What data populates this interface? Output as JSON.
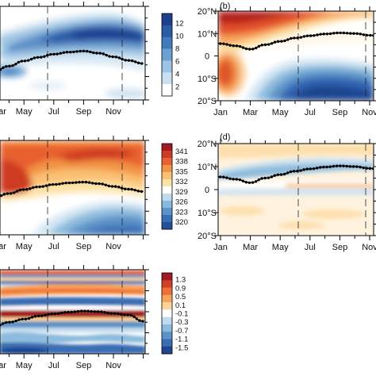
{
  "chart_data": [
    {
      "id": "a",
      "type": "heatmap",
      "panel_label": "",
      "x_ticks": [
        "Mar",
        "May",
        "Jul",
        "Sep",
        "Nov"
      ],
      "y_ticks": [],
      "colorbar": {
        "ticks": [
          "12",
          "10",
          "8",
          "6",
          "4",
          "2"
        ],
        "colors": [
          "#1d3f8f",
          "#2b5aa6",
          "#3f7bbd",
          "#6aa1d1",
          "#9cc4e2",
          "#c9e0f0",
          "#ffffff"
        ]
      },
      "dashed_month_lines": [
        "Jun",
        "Nov"
      ],
      "monthly_line": [
        {
          "month": "Jan",
          "lat": 9.0
        },
        {
          "month": "Feb",
          "lat": 8.0
        },
        {
          "month": "Mar",
          "lat": 7.5
        },
        {
          "month": "Apr",
          "lat": 8.5
        },
        {
          "month": "May",
          "lat": 9.5
        },
        {
          "month": "Jun",
          "lat": 10.2
        },
        {
          "month": "Jul",
          "lat": 10.8
        },
        {
          "month": "Aug",
          "lat": 11.2
        },
        {
          "month": "Sep",
          "lat": 11.4
        },
        {
          "month": "Oct",
          "lat": 11.0
        },
        {
          "month": "Nov",
          "lat": 10.3
        },
        {
          "month": "Dec",
          "lat": 9.6
        }
      ]
    },
    {
      "id": "b",
      "type": "heatmap",
      "panel_label": "(b)",
      "x_ticks": [
        "Jan",
        "Mar",
        "May",
        "Jul",
        "Sep",
        "Nov"
      ],
      "y_ticks": [
        "20°N",
        "10°N",
        "0",
        "10°S",
        "20°S"
      ],
      "ylim": [
        -20,
        20
      ],
      "dashed_month_lines": [
        "Jun",
        "Nov"
      ],
      "monthly_line": [
        {
          "month": "Jan",
          "lat": 5.5
        },
        {
          "month": "Feb",
          "lat": 4.5
        },
        {
          "month": "Mar",
          "lat": 3.0
        },
        {
          "month": "Apr",
          "lat": 5.0
        },
        {
          "month": "May",
          "lat": 6.5
        },
        {
          "month": "Jun",
          "lat": 8.0
        },
        {
          "month": "Jul",
          "lat": 9.0
        },
        {
          "month": "Aug",
          "lat": 9.8
        },
        {
          "month": "Sep",
          "lat": 10.3
        },
        {
          "month": "Oct",
          "lat": 10.0
        },
        {
          "month": "Nov",
          "lat": 9.2
        },
        {
          "month": "Dec",
          "lat": 8.5
        }
      ]
    },
    {
      "id": "c",
      "type": "heatmap",
      "panel_label": "",
      "x_ticks": [
        "Mar",
        "May",
        "Jul",
        "Sep",
        "Nov"
      ],
      "y_ticks": [],
      "colorbar": {
        "ticks": [
          "341",
          "338",
          "335",
          "332",
          "329",
          "326",
          "323",
          "320"
        ],
        "colors": [
          "#a11a1f",
          "#cf3a24",
          "#e8612e",
          "#f39345",
          "#fac173",
          "#fde3a7",
          "#ffffff",
          "#bfdcee",
          "#87b9dc",
          "#5b93c8",
          "#3a6eb4",
          "#264f99"
        ]
      },
      "dashed_month_lines": [
        "Jun",
        "Nov"
      ],
      "monthly_line": [
        {
          "month": "Jan",
          "lat": 9.0
        },
        {
          "month": "Feb",
          "lat": 8.0
        },
        {
          "month": "Mar",
          "lat": 7.5
        },
        {
          "month": "Apr",
          "lat": 8.5
        },
        {
          "month": "May",
          "lat": 9.5
        },
        {
          "month": "Jun",
          "lat": 10.2
        },
        {
          "month": "Jul",
          "lat": 10.8
        },
        {
          "month": "Aug",
          "lat": 11.2
        },
        {
          "month": "Sep",
          "lat": 11.4
        },
        {
          "month": "Oct",
          "lat": 11.0
        },
        {
          "month": "Nov",
          "lat": 10.3
        },
        {
          "month": "Dec",
          "lat": 9.6
        }
      ]
    },
    {
      "id": "d",
      "type": "heatmap",
      "panel_label": "(d)",
      "x_ticks": [
        "Jan",
        "Mar",
        "May",
        "Jul",
        "Sep",
        "Nov"
      ],
      "y_ticks": [
        "20°N",
        "10°N",
        "0",
        "10°S",
        "20°S"
      ],
      "ylim": [
        -20,
        20
      ],
      "dashed_month_lines": [
        "Jun",
        "Nov"
      ],
      "monthly_line": [
        {
          "month": "Jan",
          "lat": 5.5
        },
        {
          "month": "Feb",
          "lat": 4.5
        },
        {
          "month": "Mar",
          "lat": 3.0
        },
        {
          "month": "Apr",
          "lat": 5.0
        },
        {
          "month": "May",
          "lat": 6.5
        },
        {
          "month": "Jun",
          "lat": 8.0
        },
        {
          "month": "Jul",
          "lat": 9.0
        },
        {
          "month": "Aug",
          "lat": 9.8
        },
        {
          "month": "Sep",
          "lat": 10.3
        },
        {
          "month": "Oct",
          "lat": 10.0
        },
        {
          "month": "Nov",
          "lat": 9.2
        },
        {
          "month": "Dec",
          "lat": 8.5
        }
      ]
    },
    {
      "id": "e",
      "type": "heatmap",
      "panel_label": "",
      "x_ticks": [
        "Mar",
        "May",
        "Jul",
        "Sep",
        "Nov"
      ],
      "y_ticks": [],
      "colorbar": {
        "ticks": [
          "1.3",
          "0.9",
          "0.5",
          "0.1",
          "-0.1",
          "-0.3",
          "-0.7",
          "-1.1",
          "-1.5"
        ],
        "colors": [
          "#a11a1f",
          "#d23f26",
          "#ef6f36",
          "#f8a35a",
          "#fdd497",
          "#ffffff",
          "#c2dcee",
          "#8dbbdd",
          "#5b93c8",
          "#3a6eb4",
          "#1f4590"
        ]
      },
      "dashed_month_lines": [
        "Jun",
        "Nov"
      ],
      "monthly_line": [
        {
          "month": "Jan",
          "lat": 5.5
        },
        {
          "month": "Feb",
          "lat": 4.5
        },
        {
          "month": "Mar",
          "lat": 3.0
        },
        {
          "month": "Apr",
          "lat": 5.0
        },
        {
          "month": "May",
          "lat": 6.5
        },
        {
          "month": "Jun",
          "lat": 8.0
        },
        {
          "month": "Jul",
          "lat": 9.0
        },
        {
          "month": "Aug",
          "lat": 9.8
        },
        {
          "month": "Sep",
          "lat": 10.3
        },
        {
          "month": "Oct",
          "lat": 10.0
        },
        {
          "month": "Nov",
          "lat": 9.2
        },
        {
          "month": "Dec",
          "lat": 8.5
        }
      ]
    }
  ]
}
